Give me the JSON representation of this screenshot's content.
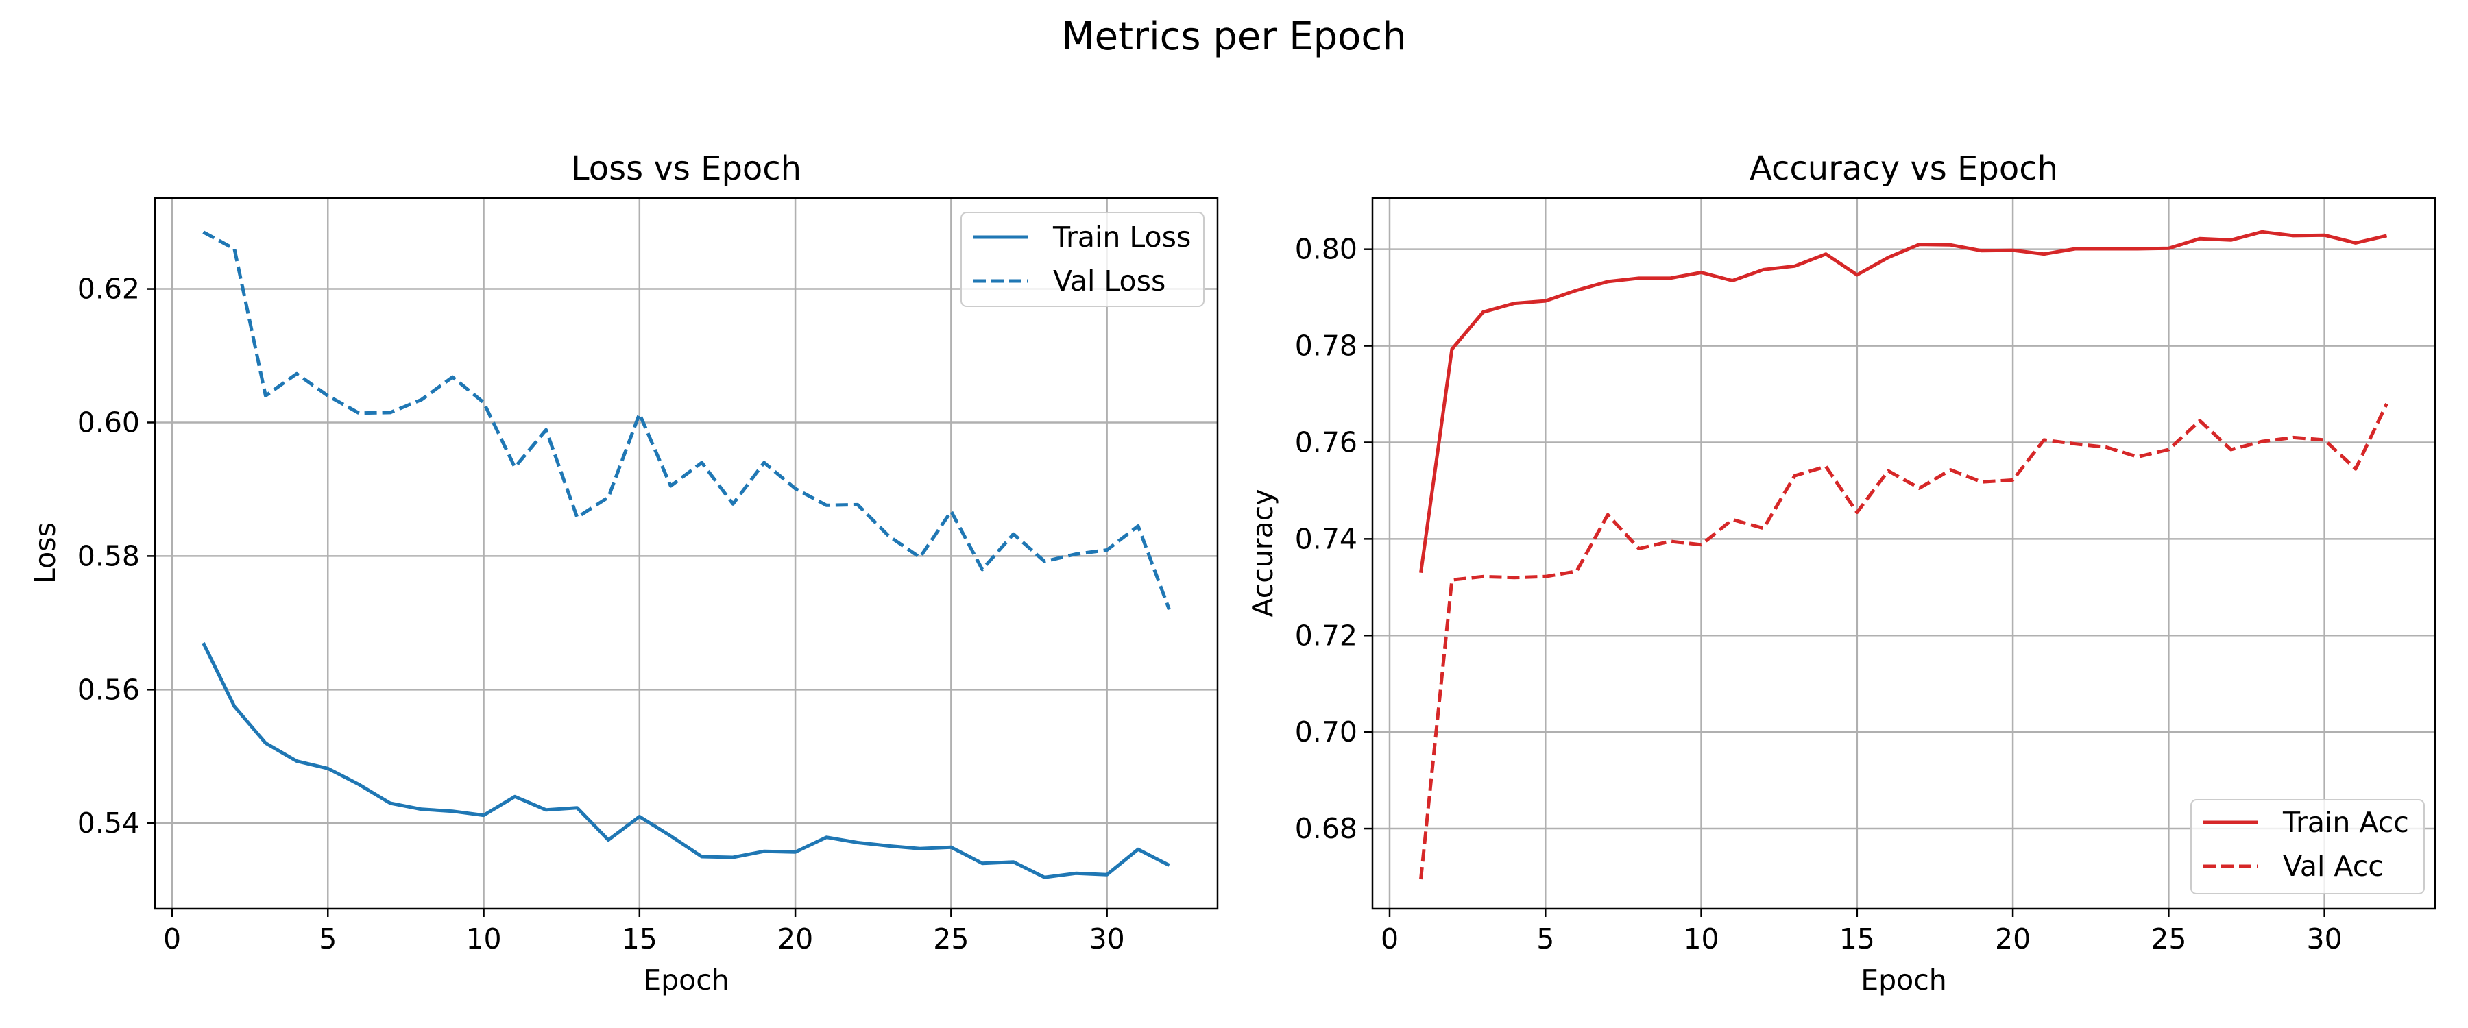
{
  "figure": {
    "title": "Metrics per Epoch"
  },
  "colors": {
    "loss": "#1f77b4",
    "acc": "#d62728",
    "grid": "#b0b0b0",
    "frame": "#000000"
  },
  "chart_data": [
    {
      "id": "loss",
      "type": "line",
      "title": "Loss vs Epoch",
      "xlabel": "Epoch",
      "ylabel": "Loss",
      "xlim": [
        -0.55,
        33.55
      ],
      "ylim": [
        0.5272,
        0.6336
      ],
      "xticks": [
        0,
        5,
        10,
        15,
        20,
        25,
        30
      ],
      "xtick_labels": [
        "0",
        "5",
        "10",
        "15",
        "20",
        "25",
        "30"
      ],
      "yticks": [
        0.54,
        0.56,
        0.58,
        0.6,
        0.62
      ],
      "ytick_labels": [
        "0.54",
        "0.56",
        "0.58",
        "0.60",
        "0.62"
      ],
      "grid": true,
      "legend": "top-right",
      "x": [
        1,
        2,
        3,
        4,
        5,
        6,
        7,
        8,
        9,
        10,
        11,
        12,
        13,
        14,
        15,
        16,
        17,
        18,
        19,
        20,
        21,
        22,
        23,
        24,
        25,
        26,
        27,
        28,
        29,
        30,
        31,
        32
      ],
      "series": [
        {
          "name": "Train Loss",
          "style": "solid",
          "values": [
            0.567,
            0.5575,
            0.552,
            0.5493,
            0.5482,
            0.5458,
            0.543,
            0.5421,
            0.5418,
            0.5412,
            0.544,
            0.542,
            0.5423,
            0.5375,
            0.541,
            0.5381,
            0.535,
            0.5349,
            0.5358,
            0.5357,
            0.5379,
            0.5371,
            0.5366,
            0.5362,
            0.5364,
            0.534,
            0.5342,
            0.5319,
            0.5325,
            0.5323,
            0.5361,
            0.5337
          ]
        },
        {
          "name": "Val Loss",
          "style": "dashed",
          "values": [
            0.6285,
            0.626,
            0.604,
            0.6073,
            0.604,
            0.6014,
            0.6015,
            0.6034,
            0.6068,
            0.603,
            0.5933,
            0.5989,
            0.5858,
            0.5888,
            0.6013,
            0.5905,
            0.594,
            0.5878,
            0.594,
            0.5901,
            0.5876,
            0.5877,
            0.583,
            0.5798,
            0.5867,
            0.578,
            0.5833,
            0.5792,
            0.5803,
            0.5809,
            0.5845,
            0.572
          ]
        }
      ]
    },
    {
      "id": "acc",
      "type": "line",
      "title": "Accuracy vs Epoch",
      "xlabel": "Epoch",
      "ylabel": "Accuracy",
      "xlim": [
        -0.55,
        33.55
      ],
      "ylim": [
        0.6634,
        0.8106
      ],
      "xticks": [
        0,
        5,
        10,
        15,
        20,
        25,
        30
      ],
      "xtick_labels": [
        "0",
        "5",
        "10",
        "15",
        "20",
        "25",
        "30"
      ],
      "yticks": [
        0.68,
        0.7,
        0.72,
        0.74,
        0.76,
        0.78,
        0.8
      ],
      "ytick_labels": [
        "0.68",
        "0.70",
        "0.72",
        "0.74",
        "0.76",
        "0.78",
        "0.80"
      ],
      "grid": true,
      "legend": "bottom-right",
      "x": [
        1,
        2,
        3,
        4,
        5,
        6,
        7,
        8,
        9,
        10,
        11,
        12,
        13,
        14,
        15,
        16,
        17,
        18,
        19,
        20,
        21,
        22,
        23,
        24,
        25,
        26,
        27,
        28,
        29,
        30,
        31,
        32
      ],
      "series": [
        {
          "name": "Train Acc",
          "style": "solid",
          "values": [
            0.733,
            0.7793,
            0.787,
            0.7888,
            0.7893,
            0.7915,
            0.7933,
            0.794,
            0.794,
            0.7952,
            0.7935,
            0.7958,
            0.7965,
            0.799,
            0.7947,
            0.7983,
            0.801,
            0.8009,
            0.7997,
            0.7998,
            0.799,
            0.8001,
            0.8001,
            0.8001,
            0.8002,
            0.8022,
            0.8019,
            0.8036,
            0.8028,
            0.8029,
            0.8013,
            0.8028
          ]
        },
        {
          "name": "Val Acc",
          "style": "dashed",
          "values": [
            0.6695,
            0.7315,
            0.7322,
            0.732,
            0.7322,
            0.7333,
            0.745,
            0.738,
            0.7395,
            0.7388,
            0.744,
            0.7422,
            0.7531,
            0.755,
            0.7455,
            0.7541,
            0.7505,
            0.7543,
            0.7518,
            0.7522,
            0.7605,
            0.7597,
            0.759,
            0.757,
            0.7585,
            0.7645,
            0.7585,
            0.7602,
            0.761,
            0.7605,
            0.7545,
            0.768
          ]
        }
      ]
    }
  ]
}
